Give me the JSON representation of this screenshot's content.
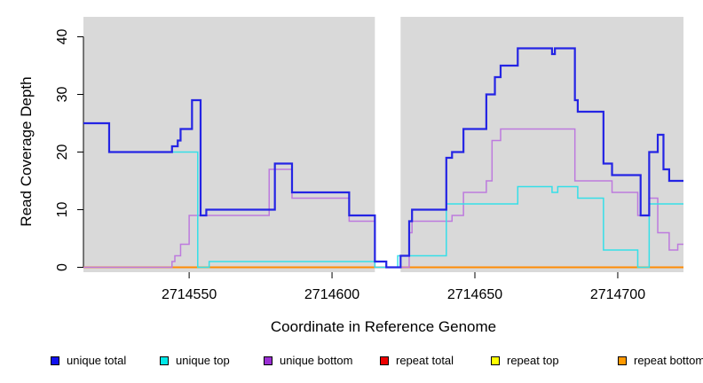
{
  "chart_data": {
    "type": "line",
    "line_style": "step",
    "title": "",
    "xlabel": "Coordinate in Reference Genome",
    "ylabel": "Read Coverage Depth",
    "xlim": [
      2714513,
      2714723
    ],
    "ylim": [
      0,
      43.5
    ],
    "x_ticks": [
      2714550,
      2714600,
      2714650,
      2714700
    ],
    "y_ticks": [
      0,
      10,
      20,
      30,
      40
    ],
    "grid": false,
    "legend_position": "bottom",
    "plot_background": "#d9d9d9",
    "page_background": "#ffffff",
    "gap_band": {
      "x_start": 2714615,
      "x_end": 2714624,
      "color": "#ffffff"
    },
    "series": [
      {
        "name": "unique total",
        "color": "#2424e4",
        "legend_color": "#1111ee",
        "width": 2.2,
        "steps": [
          [
            2714513,
            25
          ],
          [
            2714522,
            20
          ],
          [
            2714544,
            21
          ],
          [
            2714546,
            22
          ],
          [
            2714547,
            24
          ],
          [
            2714551,
            29
          ],
          [
            2714554,
            9
          ],
          [
            2714556,
            10
          ],
          [
            2714580,
            18
          ],
          [
            2714586,
            13
          ],
          [
            2714606,
            9
          ],
          [
            2714615,
            1
          ],
          [
            2714619,
            0
          ],
          [
            2714624,
            2
          ],
          [
            2714627,
            8
          ],
          [
            2714628,
            10
          ],
          [
            2714640,
            19
          ],
          [
            2714642,
            20
          ],
          [
            2714646,
            24
          ],
          [
            2714654,
            30
          ],
          [
            2714657,
            33
          ],
          [
            2714659,
            35
          ],
          [
            2714665,
            38
          ],
          [
            2714677,
            37
          ],
          [
            2714678,
            38
          ],
          [
            2714685,
            29
          ],
          [
            2714686,
            27
          ],
          [
            2714695,
            18
          ],
          [
            2714698,
            16
          ],
          [
            2714708,
            9
          ],
          [
            2714711,
            20
          ],
          [
            2714714,
            23
          ],
          [
            2714716,
            17
          ],
          [
            2714718,
            15
          ]
        ]
      },
      {
        "name": "unique top",
        "color": "#35dfe8",
        "legend_color": "#00e8e8",
        "width": 1.5,
        "steps": [
          [
            2714513,
            25
          ],
          [
            2714522,
            20
          ],
          [
            2714553,
            0
          ],
          [
            2714557,
            1
          ],
          [
            2714615,
            0
          ],
          [
            2714623,
            2
          ],
          [
            2714640,
            11
          ],
          [
            2714665,
            14
          ],
          [
            2714677,
            13
          ],
          [
            2714679,
            14
          ],
          [
            2714686,
            12
          ],
          [
            2714695,
            3
          ],
          [
            2714707,
            0
          ],
          [
            2714711,
            11
          ]
        ]
      },
      {
        "name": "unique bottom",
        "color": "#bd7ade",
        "legend_color": "#9b2fd4",
        "width": 1.5,
        "steps": [
          [
            2714513,
            0
          ],
          [
            2714544,
            1
          ],
          [
            2714545,
            2
          ],
          [
            2714547,
            4
          ],
          [
            2714550,
            9
          ],
          [
            2714578,
            17
          ],
          [
            2714586,
            12
          ],
          [
            2714606,
            8
          ],
          [
            2714615,
            0
          ],
          [
            2714627,
            6
          ],
          [
            2714628,
            8
          ],
          [
            2714642,
            9
          ],
          [
            2714646,
            13
          ],
          [
            2714654,
            15
          ],
          [
            2714656,
            22
          ],
          [
            2714659,
            24
          ],
          [
            2714685,
            15
          ],
          [
            2714698,
            13
          ],
          [
            2714707,
            9
          ],
          [
            2714711,
            12
          ],
          [
            2714714,
            6
          ],
          [
            2714718,
            3
          ],
          [
            2714721,
            4
          ]
        ]
      },
      {
        "name": "repeat total",
        "color": "#e60f0f",
        "legend_color": "#ee0000",
        "width": 1.5,
        "steps": [
          [
            2714513,
            0
          ]
        ]
      },
      {
        "name": "repeat top",
        "color": "#f5ee2b",
        "legend_color": "#ffff00",
        "width": 1.5,
        "steps": [
          [
            2714513,
            0
          ]
        ]
      },
      {
        "name": "repeat bottom",
        "color": "#ff8c05",
        "legend_color": "#ff9900",
        "width": 2,
        "steps": [
          [
            2714513,
            0
          ]
        ]
      }
    ]
  }
}
